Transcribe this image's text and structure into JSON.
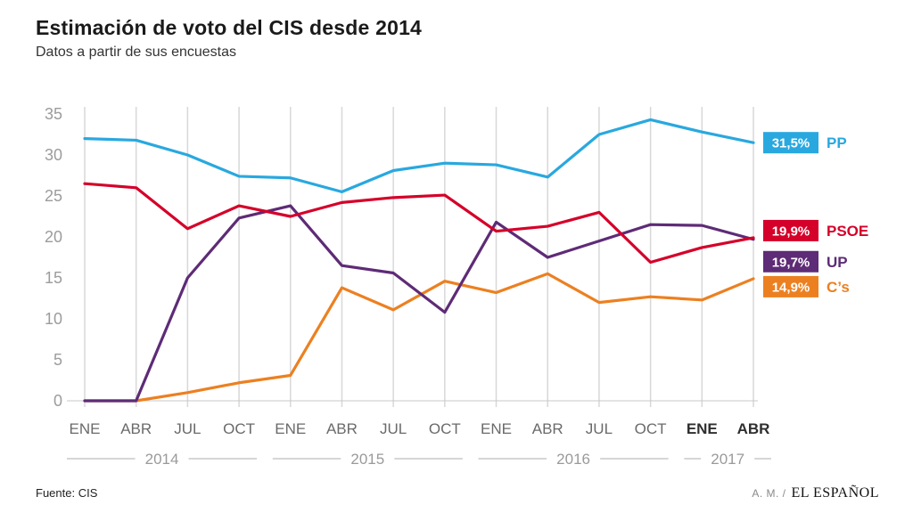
{
  "header": {
    "title": "Estimación de voto del CIS desde 2014",
    "subtitle": "Datos a partir de sus encuestas"
  },
  "footer": {
    "source": "Fuente: CIS",
    "credit": "A. M. /",
    "brand": "EL ESPAÑOL"
  },
  "chart_data": {
    "type": "line",
    "title": "Estimación de voto del CIS desde 2014",
    "subtitle": "Datos a partir de sus encuestas",
    "categories": [
      "ENE",
      "ABR",
      "JUL",
      "OCT",
      "ENE",
      "ABR",
      "JUL",
      "OCT",
      "ENE",
      "ABR",
      "JUL",
      "OCT",
      "ENE",
      "ABR"
    ],
    "bold_categories": [
      12,
      13
    ],
    "year_groups": [
      {
        "label": "2014",
        "from": 0,
        "to": 3
      },
      {
        "label": "2015",
        "from": 4,
        "to": 7
      },
      {
        "label": "2016",
        "from": 8,
        "to": 11
      },
      {
        "label": "2017",
        "from": 12,
        "to": 13
      }
    ],
    "ylim": [
      0,
      35
    ],
    "yticks": [
      0,
      5,
      10,
      15,
      20,
      25,
      30,
      35
    ],
    "grid": "vertical",
    "legend_position": "right",
    "series": [
      {
        "name": "PP",
        "color": "#29a8df",
        "value_label": "31,5%",
        "values": [
          32,
          31.8,
          30,
          27.4,
          27.2,
          25.5,
          28.1,
          29,
          28.8,
          27.3,
          32.5,
          34.3,
          32.8,
          31.5
        ]
      },
      {
        "name": "PSOE",
        "color": "#d50029",
        "value_label": "19,9%",
        "values": [
          26.5,
          26,
          21,
          23.8,
          22.5,
          24.2,
          24.8,
          25.1,
          20.7,
          21.3,
          23,
          16.9,
          18.7,
          19.9
        ]
      },
      {
        "name": "UP",
        "color": "#5e2b76",
        "value_label": "19,7%",
        "values": [
          0,
          0,
          15,
          22.3,
          23.8,
          16.5,
          15.6,
          10.8,
          21.8,
          17.5,
          19.5,
          21.5,
          21.4,
          19.7
        ]
      },
      {
        "name": "C’s",
        "color": "#ec8021",
        "value_label": "14,9%",
        "values": [
          0,
          0,
          1,
          2.2,
          3.1,
          13.8,
          11.1,
          14.6,
          13.2,
          15.5,
          12,
          12.7,
          12.3,
          14.9
        ]
      }
    ],
    "axis_colors": {
      "gridline": "#d8d8d8",
      "baseline": "#c8c8c8",
      "ytick_text": "#9c9c9c",
      "xtick_text": "#6a6a6a",
      "xtick_text_bold": "#2f2f2f",
      "year_text": "#9a9a9a",
      "year_line": "#c9c9c9"
    }
  }
}
